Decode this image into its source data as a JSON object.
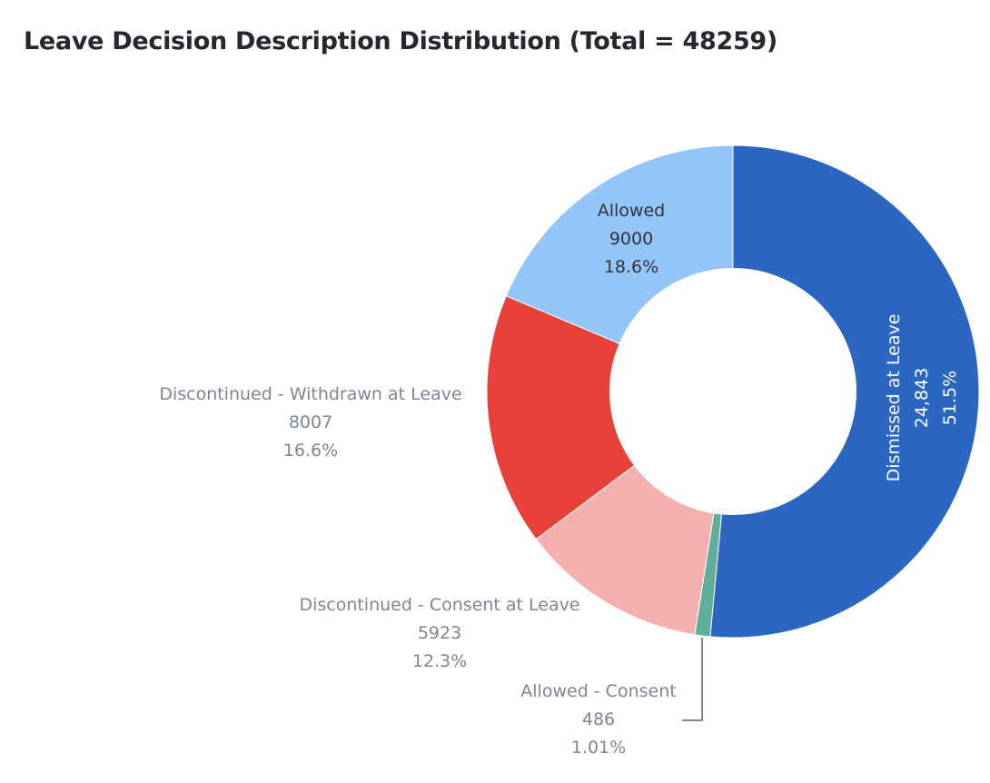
{
  "chart_data": {
    "type": "pie",
    "title": "Leave Decision Description Distribution (Total = 48259)",
    "hole": 0.5,
    "slices": [
      {
        "label": "Dismissed at Leave",
        "value": 24843,
        "value_text": "24,843",
        "percent": "51.5%",
        "color": "#2b66c2"
      },
      {
        "label": "Allowed - Consent",
        "value": 486,
        "value_text": "486",
        "percent": "1.01%",
        "color": "#5fad9b"
      },
      {
        "label": "Discontinued - Consent at Leave",
        "value": 5923,
        "value_text": "5923",
        "percent": "12.3%",
        "color": "#f4b0af"
      },
      {
        "label": "Discontinued - Withdrawn at Leave",
        "value": 8007,
        "value_text": "8007",
        "percent": "16.6%",
        "color": "#e8413a"
      },
      {
        "label": "Allowed",
        "value": 9000,
        "value_text": "9000",
        "percent": "18.6%",
        "color": "#94c5f8"
      }
    ],
    "colors": {
      "outside_label": "#808495",
      "inside_dark_label": "#31333f",
      "inside_light_label": "#ffffff",
      "leader_line": "#808495"
    }
  }
}
